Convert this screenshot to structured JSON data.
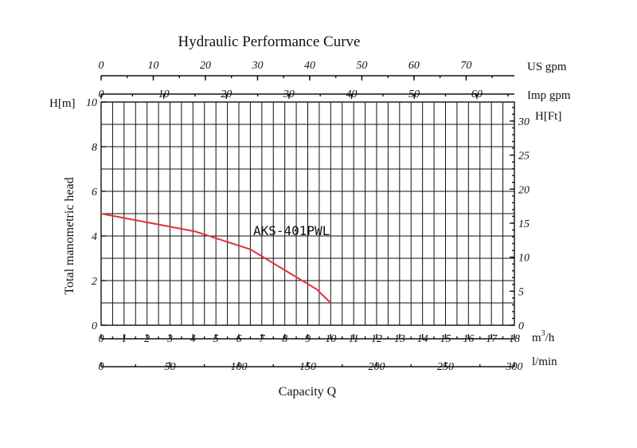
{
  "chart_data": {
    "type": "line",
    "title": "Hydraulic Performance Curve",
    "xlabel": "Capacity Q",
    "ylabel": "Total manometric head",
    "annotation": "AKS-401PWL",
    "grid": true,
    "axes": {
      "left": {
        "unit": "H[m]",
        "range": [
          0,
          10
        ],
        "ticks": [
          0,
          2,
          4,
          6,
          8,
          10
        ]
      },
      "right": {
        "unit": "H[Ft]",
        "range": [
          0,
          32.8
        ],
        "ticks": [
          0,
          5,
          10,
          15,
          20,
          25,
          30
        ]
      },
      "bottom_m3h": {
        "unit_main": "m",
        "unit_sup": "3",
        "unit_tail": "/h",
        "range": [
          0,
          18
        ],
        "ticks": [
          0,
          1,
          2,
          3,
          4,
          5,
          6,
          7,
          8,
          9,
          10,
          11,
          12,
          13,
          14,
          15,
          16,
          17,
          18
        ]
      },
      "bottom_lmin": {
        "unit": "l/min",
        "range": [
          0,
          300
        ],
        "ticks": [
          0,
          50,
          100,
          150,
          200,
          250,
          300
        ]
      },
      "top_us_gpm": {
        "unit": "US gpm",
        "range": [
          0,
          79.25
        ],
        "ticks": [
          0,
          10,
          20,
          30,
          40,
          50,
          60,
          70
        ]
      },
      "top_imp_gpm": {
        "unit": "Imp gpm",
        "range": [
          0,
          66.0
        ],
        "ticks": [
          0,
          10,
          20,
          30,
          40,
          50,
          60
        ]
      }
    },
    "series": [
      {
        "x": [
          0,
          4.1,
          6.5,
          9.4,
          10.0
        ],
        "y": [
          5.0,
          4.2,
          3.4,
          1.6,
          1.0
        ],
        "color": "#e0313a"
      }
    ]
  }
}
